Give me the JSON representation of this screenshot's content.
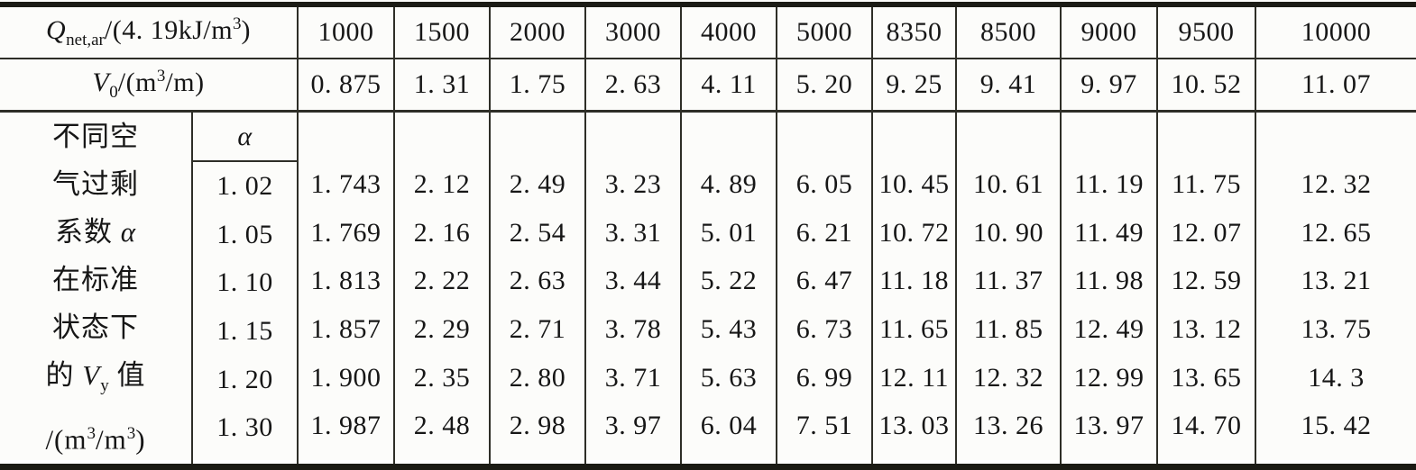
{
  "table": {
    "q_row": {
      "label": {
        "symbol": "Q",
        "subscript": "net,ar",
        "mid": "/(4. 19kJ/m",
        "sup": "3",
        "end": ")"
      },
      "values": [
        "1000",
        "1500",
        "2000",
        "3000",
        "4000",
        "5000",
        "8350",
        "8500",
        "9000",
        "9500",
        "10000"
      ]
    },
    "v0_row": {
      "label": {
        "symbol": "V",
        "subscript": "0",
        "mid": "/(m",
        "sup": "3",
        "end": "/m)"
      },
      "values": [
        "0. 875",
        "1. 31",
        "1. 75",
        "2. 63",
        "4. 11",
        "5. 20",
        "9. 25",
        "9. 41",
        "9. 97",
        "10. 52",
        "11. 07"
      ]
    },
    "alpha_section": {
      "side_label": {
        "line1": "不同空",
        "line2": "气过剩",
        "line3_pre": "系数 ",
        "line3_alpha": "α",
        "line4": "在标准",
        "line5": "状态下",
        "line6_pre": "的 ",
        "line6_symbol": "V",
        "line6_sub": "y",
        "line6_post": " 值",
        "line7_a": "/(m",
        "line7_sup1": "3",
        "line7_b": "/m",
        "line7_sup2": "3",
        "line7_c": ")"
      },
      "alpha_header": "α",
      "rows": [
        {
          "alpha": "1. 02",
          "values": [
            "1. 743",
            "2. 12",
            "2. 49",
            "3. 23",
            "4. 89",
            "6. 05",
            "10. 45",
            "10. 61",
            "11. 19",
            "11. 75",
            "12. 32"
          ]
        },
        {
          "alpha": "1. 05",
          "values": [
            "1. 769",
            "2. 16",
            "2. 54",
            "3. 31",
            "5. 01",
            "6. 21",
            "10. 72",
            "10. 90",
            "11. 49",
            "12. 07",
            "12. 65"
          ]
        },
        {
          "alpha": "1. 10",
          "values": [
            "1. 813",
            "2. 22",
            "2. 63",
            "3. 44",
            "5. 22",
            "6. 47",
            "11. 18",
            "11. 37",
            "11. 98",
            "12. 59",
            "13. 21"
          ]
        },
        {
          "alpha": "1. 15",
          "values": [
            "1. 857",
            "2. 29",
            "2. 71",
            "3. 78",
            "5. 43",
            "6. 73",
            "11. 65",
            "11. 85",
            "12. 49",
            "13. 12",
            "13. 75"
          ]
        },
        {
          "alpha": "1. 20",
          "values": [
            "1. 900",
            "2. 35",
            "2. 80",
            "3. 71",
            "5. 63",
            "6. 99",
            "12. 11",
            "12. 32",
            "12. 99",
            "13. 65",
            "14. 3"
          ]
        },
        {
          "alpha": "1. 30",
          "values": [
            "1. 987",
            "2. 48",
            "2. 98",
            "3. 97",
            "6. 04",
            "7. 51",
            "13. 03",
            "13. 26",
            "13. 97",
            "14. 70",
            "15. 42"
          ]
        }
      ]
    }
  }
}
